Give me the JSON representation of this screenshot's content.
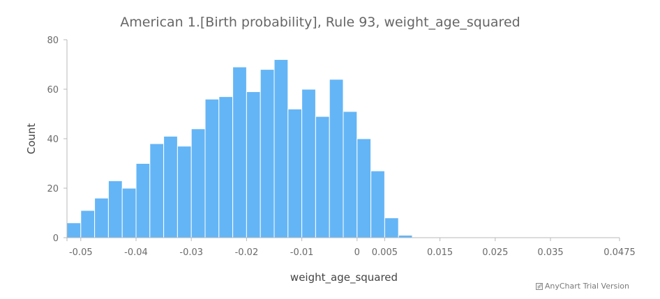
{
  "chart_data": {
    "type": "bar",
    "title": "American 1.[Birth probability], Rule 93, weight_age_squared",
    "xlabel": "weight_age_squared",
    "ylabel": "Count",
    "ylim": [
      0,
      80
    ],
    "y_ticks": [
      "0",
      "20",
      "40",
      "60",
      "80"
    ],
    "x_ticks": [
      "-0.05",
      "-0.04",
      "-0.03",
      "-0.02",
      "-0.01",
      "0",
      "0.005",
      "0.015",
      "0.025",
      "0.035",
      "0.0475"
    ],
    "bin_width": 0.0025,
    "bins": [
      {
        "x": -0.0525,
        "count": 6
      },
      {
        "x": -0.05,
        "count": 11
      },
      {
        "x": -0.0475,
        "count": 16
      },
      {
        "x": -0.045,
        "count": 23
      },
      {
        "x": -0.0425,
        "count": 20
      },
      {
        "x": -0.04,
        "count": 30
      },
      {
        "x": -0.0375,
        "count": 38
      },
      {
        "x": -0.035,
        "count": 41
      },
      {
        "x": -0.0325,
        "count": 37
      },
      {
        "x": -0.03,
        "count": 44
      },
      {
        "x": -0.0275,
        "count": 56
      },
      {
        "x": -0.025,
        "count": 57
      },
      {
        "x": -0.0225,
        "count": 69
      },
      {
        "x": -0.02,
        "count": 59
      },
      {
        "x": -0.0175,
        "count": 68
      },
      {
        "x": -0.015,
        "count": 72
      },
      {
        "x": -0.0125,
        "count": 52
      },
      {
        "x": -0.01,
        "count": 60
      },
      {
        "x": -0.0075,
        "count": 49
      },
      {
        "x": -0.005,
        "count": 64
      },
      {
        "x": -0.0025,
        "count": 51
      },
      {
        "x": 0.0,
        "count": 40
      },
      {
        "x": 0.0025,
        "count": 27
      },
      {
        "x": 0.005,
        "count": 8
      },
      {
        "x": 0.0075,
        "count": 1
      }
    ],
    "grid": false,
    "bar_color": "#64b5f6"
  },
  "credits": "AnyChart Trial Version"
}
